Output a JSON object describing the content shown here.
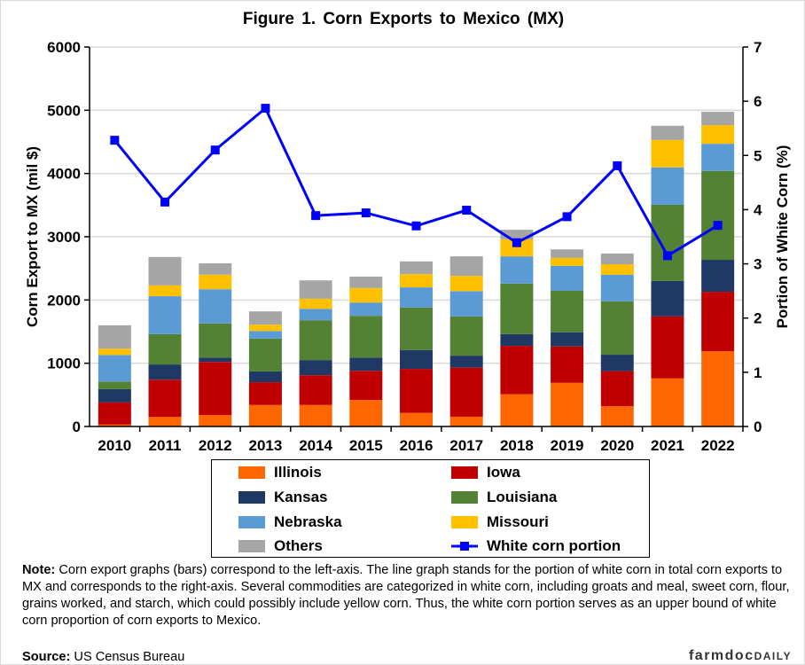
{
  "chart_data": {
    "type": "bar",
    "stacked": true,
    "title": "Figure  1. Corn Exports to Mexico  (MX)",
    "ylabel": "Corn Export to MX (mil $)",
    "y2label": "Portion of White Corn (%)",
    "ylim": [
      0,
      6000
    ],
    "y2lim": [
      0,
      7
    ],
    "yticks": [
      "0",
      "1000",
      "2000",
      "3000",
      "4000",
      "5000",
      "6000"
    ],
    "y2ticks": [
      "0",
      "1",
      "2",
      "3",
      "4",
      "5",
      "6",
      "7"
    ],
    "grid": true,
    "legend_position": "bottom",
    "categories": [
      "2010",
      "2011",
      "2012",
      "2013",
      "2014",
      "2015",
      "2016",
      "2017",
      "2018",
      "2019",
      "2020",
      "2021",
      "2022"
    ],
    "series": [
      {
        "name": "Illinois",
        "color": "#ff6600",
        "values": [
          30,
          150,
          180,
          340,
          340,
          420,
          215,
          155,
          510,
          690,
          320,
          760,
          1190
        ]
      },
      {
        "name": "Iowa",
        "color": "#c00000",
        "values": [
          350,
          590,
          840,
          360,
          470,
          460,
          695,
          775,
          765,
          575,
          555,
          980,
          940
        ]
      },
      {
        "name": "Kansas",
        "color": "#203864",
        "values": [
          210,
          240,
          70,
          170,
          240,
          210,
          300,
          190,
          185,
          225,
          260,
          560,
          505
        ]
      },
      {
        "name": "Louisiana",
        "color": "#548235",
        "values": [
          120,
          480,
          540,
          520,
          630,
          660,
          670,
          620,
          800,
          655,
          845,
          1205,
          1405
        ]
      },
      {
        "name": "Nebraska",
        "color": "#5b9bd5",
        "values": [
          420,
          600,
          540,
          120,
          180,
          210,
          320,
          400,
          430,
          395,
          420,
          590,
          430
        ]
      },
      {
        "name": "Missouri",
        "color": "#ffc000",
        "values": [
          100,
          170,
          230,
          100,
          160,
          230,
          210,
          240,
          270,
          125,
          165,
          435,
          295
        ]
      },
      {
        "name": "Others",
        "color": "#a5a5a5",
        "values": [
          370,
          450,
          180,
          210,
          290,
          180,
          200,
          310,
          150,
          135,
          170,
          225,
          210
        ]
      }
    ],
    "line_series": {
      "name": "White corn portion",
      "color": "#0000ff",
      "axis": "right",
      "values": [
        5.28,
        4.14,
        5.1,
        5.87,
        3.89,
        3.94,
        3.7,
        3.99,
        3.39,
        3.87,
        4.81,
        3.15,
        3.71
      ]
    }
  },
  "legend_order": [
    0,
    1,
    2,
    3,
    4,
    5,
    6
  ],
  "note_label": "Note:",
  "note_text": " Corn export graphs (bars) correspond to the left-axis. The line graph stands for the portion of white corn in total corn exports to MX and corresponds to the right-axis. Several commodities are categorized in white corn, including groats and meal, sweet corn, flour, grains worked, and starch, which could possibly include yellow corn. Thus, the white corn portion serves as an upper bound of white corn proportion of corn exports to Mexico.",
  "source_label": "Source:",
  "source_text": " US Census Bureau",
  "logo": "farmdocDAILY"
}
